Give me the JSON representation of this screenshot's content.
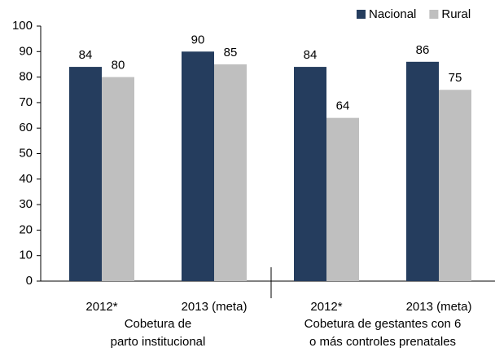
{
  "chart_data": {
    "type": "bar",
    "categories": [
      "2012*",
      "2013 (meta)",
      "2012*",
      "2013 (meta)"
    ],
    "groups": [
      [
        "Cobetura de",
        "parto institucional"
      ],
      [
        "Cobetura de gestantes con 6",
        "o más controles prenatales"
      ]
    ],
    "series": [
      {
        "name": "Nacional",
        "color": "#253d5e",
        "values": [
          84,
          90,
          84,
          86
        ]
      },
      {
        "name": "Rural",
        "color": "#bfbfbf",
        "values": [
          80,
          85,
          64,
          75
        ]
      }
    ],
    "ylim": [
      0,
      100
    ],
    "yticks": [
      0,
      10,
      20,
      30,
      40,
      50,
      60,
      70,
      80,
      90,
      100
    ],
    "grid": false,
    "legend": "top-right"
  }
}
